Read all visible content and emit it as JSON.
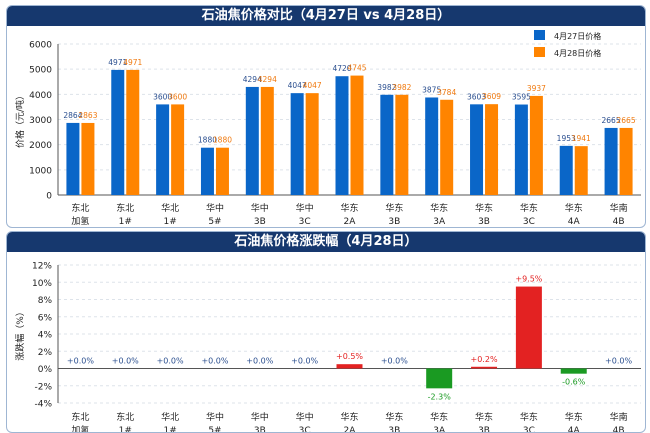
{
  "chart_data": [
    {
      "type": "bar",
      "title": "石油焦价格对比（4月27日 vs 4月28日）",
      "ylabel": "价格（元/吨）",
      "xlabel": "",
      "ylim": [
        0,
        6000
      ],
      "yticks": [
        0,
        1000,
        2000,
        3000,
        4000,
        5000,
        6000
      ],
      "grid": true,
      "legend": "top-right",
      "categories": [
        "东北\n加氢",
        "东北\n1#",
        "华北\n1#",
        "华中\n5#",
        "华中\n3B",
        "华中\n3C",
        "华东\n2A",
        "华东\n3B",
        "华东\n3A",
        "华东\n3B",
        "华东\n3C",
        "华东\n4A",
        "华南\n4B"
      ],
      "series": [
        {
          "name": "4月27日价格",
          "color": "#0a66c8",
          "label_color": "#2b4f8f",
          "values": [
            2864,
            4971,
            3600,
            1880,
            4294,
            4047,
            4720,
            3982,
            3875,
            3603,
            3595,
            1953,
            2665
          ]
        },
        {
          "name": "4月28日价格",
          "color": "#ff8400",
          "label_color": "#f07a10",
          "values": [
            2863,
            4971,
            3600,
            1880,
            4294,
            4047,
            4745,
            3982,
            3784,
            3609,
            3937,
            1941,
            2665
          ]
        }
      ]
    },
    {
      "type": "bar",
      "title": "石油焦价格涨跌幅（4月28日）",
      "ylabel": "涨跌幅（%）",
      "xlabel": "",
      "ylim": [
        -4,
        12
      ],
      "yticks": [
        -4,
        -2,
        0,
        2,
        4,
        6,
        8,
        10,
        12
      ],
      "grid": true,
      "categories": [
        "东北\n加氢",
        "东北\n1#",
        "华北\n1#",
        "华中\n5#",
        "华中\n3B",
        "华中\n3C",
        "华东\n2A",
        "华东\n3B",
        "华东\n3A",
        "华东\n3B",
        "华东\n3C",
        "华东\n4A",
        "华南\n4B"
      ],
      "values": [
        0.0,
        0.0,
        0.0,
        0.0,
        0.0,
        0.0,
        0.5,
        0.0,
        -2.3,
        0.2,
        9.5,
        -0.6,
        0.0
      ],
      "labels": [
        "+0.0%",
        "+0.0%",
        "+0.0%",
        "+0.0%",
        "+0.0%",
        "+0.0%",
        "+0.5%",
        "+0.0%",
        "-2.3%",
        "+0.2%",
        "+9.5%",
        "-0.6%",
        "+0.0%"
      ],
      "colors": {
        "up": "#e32222",
        "down": "#1a9a22",
        "flat": "#2b4f8f"
      }
    }
  ]
}
